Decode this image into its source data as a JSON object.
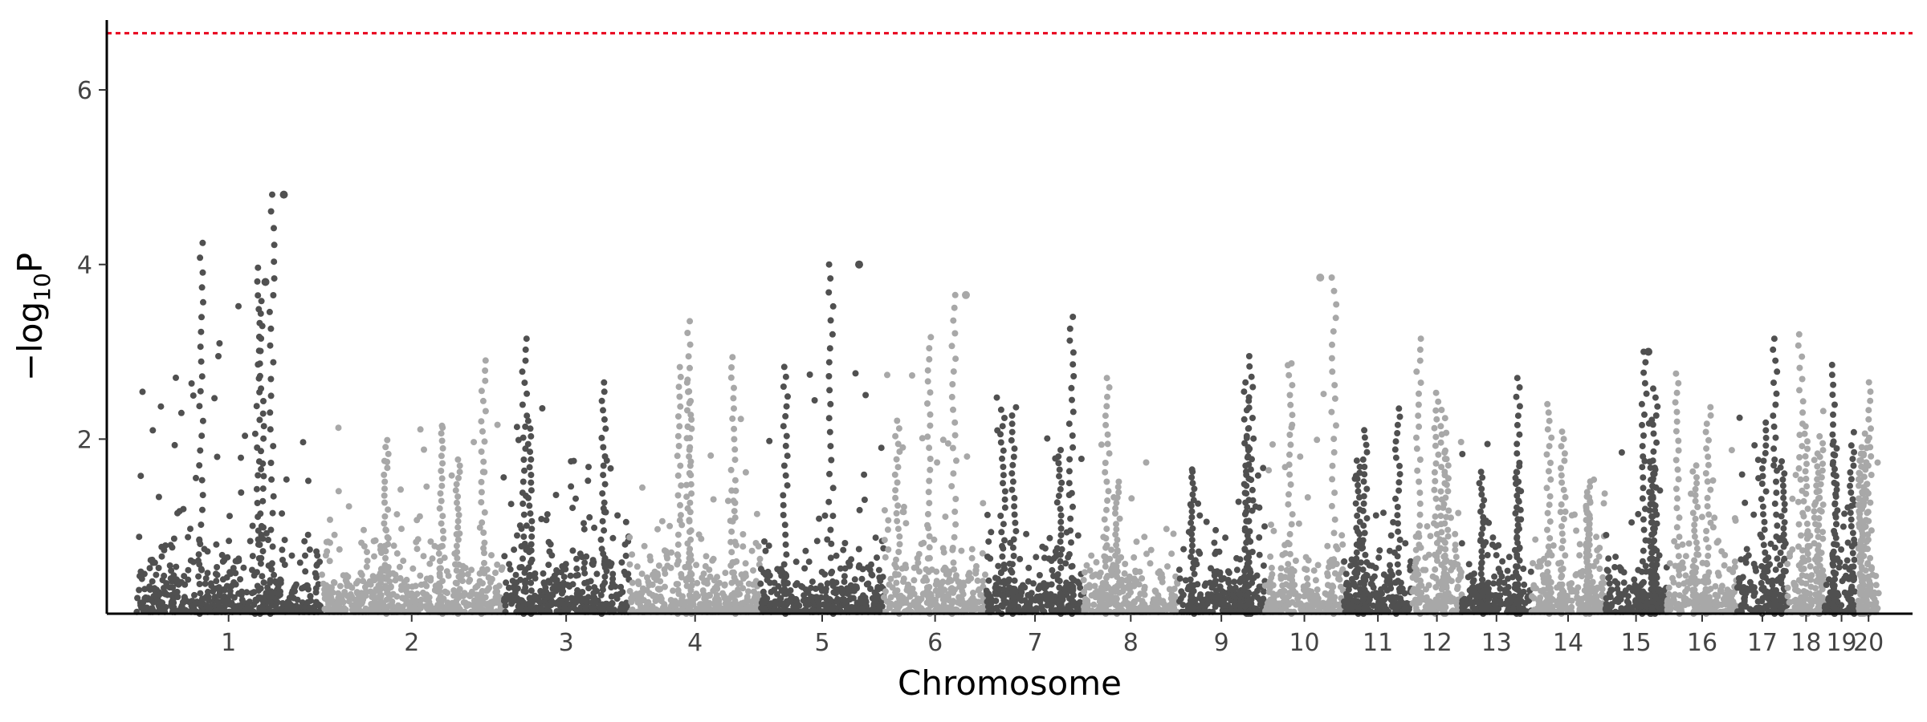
{
  "chart_data": {
    "type": "scatter",
    "subtype": "manhattan",
    "title": "",
    "xlabel": "Chromosome",
    "ylabel": "−log10P",
    "ylim": [
      0,
      6.8
    ],
    "y_ticks": [
      2,
      4,
      6
    ],
    "grid": false,
    "legend": "none",
    "colors": {
      "dark": "#505050",
      "light": "#a8a8a8",
      "threshold": "#e8001c",
      "axis": "#000000"
    },
    "threshold": {
      "value": 6.65,
      "style": "dashed",
      "color": "#e8001c"
    },
    "chromosomes": [
      {
        "label": "1",
        "start": 0.0,
        "end": 0.1057,
        "max": 4.8,
        "color": "dark"
      },
      {
        "label": "2",
        "start": 0.1057,
        "end": 0.2102,
        "max": 2.9,
        "color": "light"
      },
      {
        "label": "3",
        "start": 0.2102,
        "end": 0.283,
        "max": 3.15,
        "color": "dark"
      },
      {
        "label": "4",
        "start": 0.283,
        "end": 0.3582,
        "max": 3.35,
        "color": "light"
      },
      {
        "label": "5",
        "start": 0.3582,
        "end": 0.4289,
        "max": 4.0,
        "color": "dark"
      },
      {
        "label": "6",
        "start": 0.4289,
        "end": 0.4878,
        "max": 3.65,
        "color": "light"
      },
      {
        "label": "7",
        "start": 0.4878,
        "end": 0.5436,
        "max": 3.4,
        "color": "dark"
      },
      {
        "label": "8",
        "start": 0.5436,
        "end": 0.5977,
        "max": 2.7,
        "color": "light"
      },
      {
        "label": "9",
        "start": 0.5977,
        "end": 0.6476,
        "max": 2.95,
        "color": "dark"
      },
      {
        "label": "10",
        "start": 0.6476,
        "end": 0.693,
        "max": 3.85,
        "color": "light"
      },
      {
        "label": "11",
        "start": 0.693,
        "end": 0.732,
        "max": 2.35,
        "color": "dark"
      },
      {
        "label": "12",
        "start": 0.732,
        "end": 0.7607,
        "max": 3.15,
        "color": "light"
      },
      {
        "label": "13",
        "start": 0.7607,
        "end": 0.8004,
        "max": 2.7,
        "color": "dark"
      },
      {
        "label": "14",
        "start": 0.8004,
        "end": 0.8429,
        "max": 2.4,
        "color": "light"
      },
      {
        "label": "15",
        "start": 0.8429,
        "end": 0.8784,
        "max": 3.0,
        "color": "dark"
      },
      {
        "label": "16",
        "start": 0.8784,
        "end": 0.9188,
        "max": 2.75,
        "color": "light"
      },
      {
        "label": "17",
        "start": 0.9188,
        "end": 0.9475,
        "max": 3.15,
        "color": "dark"
      },
      {
        "label": "18",
        "start": 0.9475,
        "end": 0.969,
        "max": 3.2,
        "color": "light"
      },
      {
        "label": "19",
        "start": 0.969,
        "end": 0.9882,
        "max": 2.85,
        "color": "dark"
      },
      {
        "label": "20",
        "start": 0.9882,
        "end": 1.0,
        "max": 2.65,
        "color": "light"
      }
    ],
    "annotated_peaks": [
      {
        "chromosome": "1",
        "y": 4.8
      },
      {
        "chromosome": "1",
        "y": 3.8
      },
      {
        "chromosome": "5",
        "y": 4.0
      },
      {
        "chromosome": "10",
        "y": 3.85
      },
      {
        "chromosome": "6",
        "y": 3.65
      },
      {
        "chromosome": "15",
        "y": 3.0
      }
    ]
  }
}
